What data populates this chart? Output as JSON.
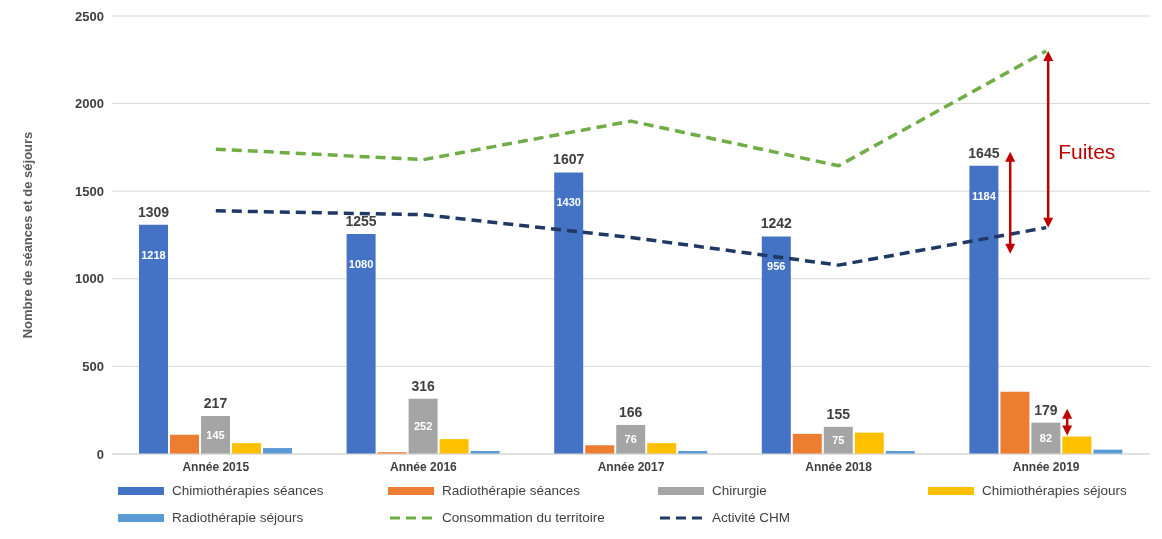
{
  "chart_data": {
    "type": "bar",
    "ylabel": "Nombre de séances et de séjours",
    "categories": [
      "Année 2015",
      "Année 2016",
      "Année 2017",
      "Année 2018",
      "Année 2019"
    ],
    "series": [
      {
        "name": "Chimiothérapies séances",
        "color": "#4472c4",
        "values": [
          1309,
          1255,
          1607,
          1242,
          1645
        ],
        "value_labels": [
          "1309",
          "1255",
          "1607",
          "1242",
          "1645"
        ]
      },
      {
        "name": "Radiothérapie séances",
        "color": "#ed7d31",
        "values": [
          110,
          10,
          50,
          115,
          355
        ]
      },
      {
        "name": "Chirurgie",
        "color": "#a5a5a5",
        "values": [
          217,
          316,
          166,
          155,
          179
        ],
        "value_labels": [
          "217",
          "316",
          "166",
          "155",
          "179"
        ]
      },
      {
        "name": "Chimiothérapies séjours",
        "color": "#ffc000",
        "values": [
          62,
          85,
          62,
          122,
          100
        ]
      },
      {
        "name": "Radiothérapie séjours",
        "color": "#5b9bd5",
        "values": [
          34,
          17,
          17,
          17,
          25
        ]
      },
      {
        "name": "Consommation du territoire",
        "type": "line",
        "color": "#70ad47",
        "line_style": "dashed",
        "values": [
          1740,
          1680,
          1900,
          1645,
          2300
        ]
      },
      {
        "name": "Activité CHM",
        "type": "line",
        "color": "#203864",
        "line_style": "dashed",
        "values": [
          1388,
          1366,
          1236,
          1078,
          1292
        ]
      }
    ],
    "annotations": [
      "1218",
      "1080",
      "1430",
      "956",
      "1184",
      "145",
      "252",
      "76",
      "75",
      "82",
      "Fuites"
    ],
    "ylim": [
      0,
      2500
    ],
    "yticks": [
      0,
      500,
      1000,
      1500,
      2000,
      2500
    ],
    "grid": "y",
    "legend": "bottom",
    "marker": "none"
  }
}
